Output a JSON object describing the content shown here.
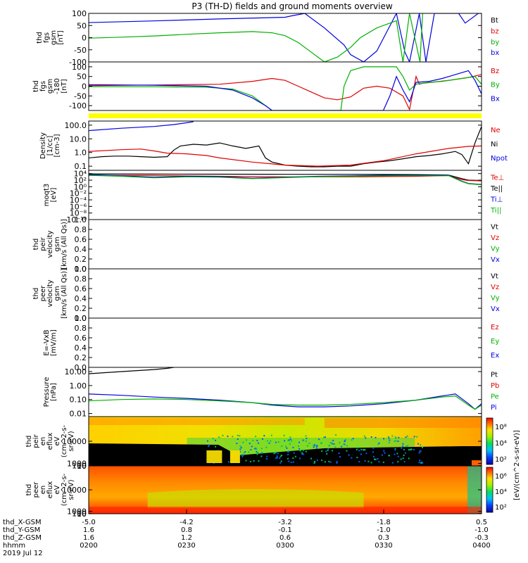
{
  "title": "P3 (TH-D) fields and ground moments overview",
  "chart_data": [
    {
      "id": "fgs",
      "type": "line",
      "ylabel": [
        "thd",
        "fgs",
        "gsm",
        "[nT]"
      ],
      "ylim": [
        -100,
        100
      ],
      "yticks": [
        100,
        50,
        0,
        -50,
        -100
      ],
      "legend": [
        {
          "text": "Bt",
          "color": "#000000"
        },
        {
          "text": "bz",
          "color": "#e00000"
        },
        {
          "text": "by",
          "color": "#00b000"
        },
        {
          "text": "bx",
          "color": "#0000e0"
        }
      ],
      "series": [
        {
          "color": "#0000e0",
          "x": [
            0,
            10,
            20,
            30,
            31,
            33,
            36,
            39,
            40,
            42,
            44,
            47,
            48.3,
            49,
            50.5,
            51.5,
            52.8,
            54,
            56.5,
            57.5,
            59.5,
            60
          ],
          "y": [
            62,
            69,
            77,
            84,
            90,
            100,
            40,
            -30,
            -70,
            -100,
            -55,
            100,
            -60,
            -100,
            100,
            -100,
            100,
            100,
            100,
            60,
            100,
            100
          ]
        },
        {
          "color": "#00b000",
          "x": [
            0,
            5,
            10,
            15,
            20,
            25,
            28,
            30,
            32,
            34,
            35,
            36,
            38,
            40,
            41.5,
            44,
            47,
            48,
            49,
            50.6,
            51
          ],
          "y": [
            -2,
            2,
            7,
            14,
            20,
            25,
            20,
            8,
            -20,
            -60,
            -80,
            -100,
            -80,
            -40,
            0,
            40,
            70,
            -100,
            100,
            -100,
            100
          ]
        }
      ]
    },
    {
      "id": "fgs_mgse",
      "type": "line",
      "ylabel": [
        "thd",
        "fgs",
        "gsm",
        "-180",
        "[nT]"
      ],
      "ylim": [
        -125,
        125
      ],
      "yticks": [
        100,
        50,
        0,
        -50,
        -100
      ],
      "legend": [
        {
          "text": "Bz",
          "color": "#e00000"
        },
        {
          "text": "By",
          "color": "#00b000"
        },
        {
          "text": "Bx",
          "color": "#0000e0"
        }
      ],
      "series": [
        {
          "color": "#e00000",
          "x": [
            0,
            10,
            20,
            25,
            28,
            30,
            32,
            34,
            36,
            38,
            40,
            42,
            44,
            46,
            48,
            49,
            50,
            50.5,
            51,
            55,
            58,
            60
          ],
          "y": [
            3,
            6,
            10,
            25,
            40,
            30,
            0,
            -30,
            -60,
            -70,
            -55,
            -10,
            0,
            -10,
            -50,
            -120,
            50,
            10,
            15,
            30,
            45,
            60
          ]
        },
        {
          "color": "#00b000",
          "x": [
            0,
            10,
            18,
            22,
            25,
            27,
            28,
            29,
            31,
            34,
            36,
            37,
            38.5,
            39,
            40,
            42,
            45,
            47,
            48,
            49,
            50,
            52,
            54,
            57,
            59,
            60
          ],
          "y": [
            -2,
            -3,
            -5,
            -15,
            -50,
            -100,
            -125,
            -125,
            -125,
            -125,
            -125,
            -125,
            -125,
            0,
            80,
            100,
            100,
            100,
            50,
            -20,
            10,
            20,
            25,
            40,
            50,
            10
          ]
        },
        {
          "color": "#0000e0",
          "x": [
            0,
            10,
            18,
            22,
            25,
            27,
            28,
            29,
            30,
            31,
            40,
            45,
            46,
            47,
            48,
            49,
            50,
            52,
            54,
            56,
            58,
            59,
            60
          ],
          "y": [
            8,
            5,
            0,
            -20,
            -60,
            -100,
            -125,
            -125,
            -125,
            -125,
            -125,
            -125,
            -50,
            50,
            -20,
            -80,
            20,
            25,
            40,
            60,
            80,
            30,
            -40
          ]
        }
      ]
    },
    {
      "id": "density",
      "type": "line",
      "log": true,
      "ylabel": [
        "Density",
        "[1/cc]",
        "[cm-3]"
      ],
      "ylim": [
        0.05,
        200
      ],
      "yticks": [
        100.0,
        10.0,
        1.0,
        0.1
      ],
      "ytick_labels": [
        "100.0",
        "10.0",
        "1.0",
        "0.1"
      ],
      "legend": [
        {
          "text": "Ne",
          "color": "#e00000"
        },
        {
          "text": "Ni",
          "color": "#000000"
        },
        {
          "text": "Npot",
          "color": "#0000e0"
        }
      ],
      "series": [
        {
          "color": "#0000e0",
          "x": [
            0,
            5,
            10,
            13,
            15,
            16
          ],
          "y": [
            40,
            60,
            80,
            110,
            150,
            180
          ]
        },
        {
          "color": "#000000",
          "x": [
            0,
            2,
            4,
            6,
            8,
            10,
            12,
            13,
            14,
            16,
            18,
            20,
            22,
            24,
            26,
            27,
            28,
            30,
            32,
            34,
            36,
            38,
            40,
            42,
            44,
            46,
            48,
            50,
            52,
            54,
            56,
            57,
            58,
            59,
            60
          ],
          "y": [
            0.4,
            0.5,
            0.55,
            0.55,
            0.5,
            0.45,
            0.5,
            1.5,
            3,
            4,
            3.5,
            5,
            3,
            2,
            3,
            0.4,
            0.2,
            0.12,
            0.1,
            0.09,
            0.09,
            0.1,
            0.1,
            0.15,
            0.2,
            0.25,
            0.35,
            0.5,
            0.6,
            0.8,
            1.2,
            0.7,
            0.15,
            5,
            80
          ]
        },
        {
          "color": "#e00000",
          "x": [
            0,
            5,
            8,
            10,
            12,
            15,
            18,
            20,
            25,
            30,
            35,
            40,
            45,
            50,
            55,
            58,
            60
          ],
          "y": [
            1.2,
            1.6,
            1.8,
            1.3,
            0.9,
            0.8,
            0.6,
            0.4,
            0.2,
            0.12,
            0.1,
            0.12,
            0.25,
            0.8,
            2.0,
            2.8,
            3.0
          ]
        }
      ]
    },
    {
      "id": "temp",
      "type": "line",
      "log": true,
      "ylabel": [
        "moqt3",
        "[eV]"
      ],
      "ylim": [
        1e-10,
        100000.0
      ],
      "yticks": [
        10000,
        100,
        1,
        0.01,
        0.0001,
        1e-06,
        1e-08,
        1e-10
      ],
      "ytick_labels": [
        "10⁴",
        "10²",
        "10⁰",
        "10⁻²",
        "10⁻⁴",
        "10⁻⁶",
        "10⁻⁸",
        "10⁻¹⁰"
      ],
      "legend": [
        {
          "text": "Te⊥",
          "color": "#e00000"
        },
        {
          "text": "Te||",
          "color": "#000000"
        },
        {
          "text": "Ti⊥",
          "color": "#0000e0"
        },
        {
          "text": "Ti||",
          "color": "#00b000"
        }
      ],
      "series": [
        {
          "color": "#000000",
          "x": [
            0,
            10,
            20,
            30,
            40,
            50,
            55,
            57,
            58,
            60
          ],
          "y": [
            8000,
            7000,
            6500,
            6000,
            6000,
            5000,
            3500,
            300,
            100,
            80
          ]
        },
        {
          "color": "#e00000",
          "x": [
            0,
            10,
            20,
            30,
            40,
            50,
            55,
            57,
            58,
            60
          ],
          "y": [
            3000,
            2500,
            1500,
            1000,
            1000,
            1500,
            2500,
            150,
            80,
            60
          ]
        },
        {
          "color": "#0000e0",
          "x": [
            0,
            5,
            10,
            15,
            20,
            25,
            30,
            35,
            40,
            45,
            50,
            55,
            57,
            58,
            60
          ],
          "y": [
            5000,
            2000,
            800,
            1500,
            1200,
            400,
            800,
            1500,
            2000,
            3000,
            3500,
            3000,
            50,
            10,
            5
          ]
        },
        {
          "color": "#00b000",
          "x": [
            0,
            5,
            10,
            15,
            20,
            25,
            30,
            35,
            40,
            45,
            50,
            55,
            57,
            58,
            60
          ],
          "y": [
            3000,
            1500,
            500,
            1000,
            800,
            300,
            600,
            1200,
            1500,
            2000,
            2500,
            2200,
            40,
            8,
            4
          ]
        }
      ]
    },
    {
      "id": "peir_vel",
      "type": "line",
      "ylabel": [
        "thd",
        "peir",
        "velocity",
        "gsm",
        "[km/s (All Qs)]"
      ],
      "ylim": [
        0,
        1
      ],
      "yticks": [
        1.0,
        0.8,
        0.6,
        0.4,
        0.2,
        0.0
      ],
      "ytick_labels": [
        "1.0",
        "0.8",
        "0.6",
        "0.4",
        "0.2",
        "0.0"
      ],
      "legend": [
        {
          "text": "Vt",
          "color": "#000000"
        },
        {
          "text": "Vz",
          "color": "#e00000"
        },
        {
          "text": "Vy",
          "color": "#00b000"
        },
        {
          "text": "Vx",
          "color": "#0000e0"
        }
      ],
      "series": []
    },
    {
      "id": "peer_vel",
      "type": "line",
      "ylabel": [
        "thd",
        "peer",
        "velocity",
        "gsm",
        "[km/s (All Qs)]"
      ],
      "ylim": [
        0,
        1
      ],
      "yticks": [
        1.0,
        0.8,
        0.6,
        0.4,
        0.2,
        0.0
      ],
      "ytick_labels": [
        "1.0",
        "0.8",
        "0.6",
        "0.4",
        "0.2",
        "0.0"
      ],
      "legend": [
        {
          "text": "Vt",
          "color": "#000000"
        },
        {
          "text": "Vz",
          "color": "#e00000"
        },
        {
          "text": "Vy",
          "color": "#00b000"
        },
        {
          "text": "Vx",
          "color": "#0000e0"
        }
      ],
      "series": []
    },
    {
      "id": "efield",
      "type": "line",
      "ylabel": [
        "E=-VxB",
        "[mV/m]"
      ],
      "ylim": [
        0,
        1
      ],
      "yticks": [
        1.0,
        0.8,
        0.6,
        0.4,
        0.2,
        0.0
      ],
      "ytick_labels": [
        "1.0",
        "0.8",
        "0.6",
        "0.4",
        "0.2",
        "0.0"
      ],
      "legend": [
        {
          "text": "Ez",
          "color": "#e00000"
        },
        {
          "text": "Ey",
          "color": "#00b000"
        },
        {
          "text": "Ex",
          "color": "#0000e0"
        }
      ],
      "series": []
    },
    {
      "id": "pressure",
      "type": "line",
      "log": true,
      "ylabel": [
        "Pressure",
        "[nPa]"
      ],
      "ylim": [
        0.006,
        20
      ],
      "yticks": [
        10.0,
        1.0,
        0.1,
        0.01
      ],
      "ytick_labels": [
        "10.00",
        "1.00",
        "0.10",
        "0.01"
      ],
      "legend": [
        {
          "text": "Pt",
          "color": "#000000"
        },
        {
          "text": "Pb",
          "color": "#e00000"
        },
        {
          "text": "Pe",
          "color": "#00b000"
        },
        {
          "text": "Pi",
          "color": "#0000e0"
        }
      ],
      "series": [
        {
          "color": "#000000",
          "x": [
            0,
            5,
            10,
            12,
            13
          ],
          "y": [
            7,
            10,
            14,
            17,
            20
          ]
        },
        {
          "color": "#0000e0",
          "x": [
            0,
            5,
            10,
            15,
            20,
            25,
            28,
            32,
            36,
            40,
            45,
            50,
            54,
            56,
            58,
            59,
            60
          ],
          "y": [
            0.25,
            0.2,
            0.15,
            0.12,
            0.09,
            0.06,
            0.04,
            0.03,
            0.03,
            0.035,
            0.05,
            0.09,
            0.18,
            0.25,
            0.05,
            0.02,
            0.05
          ]
        },
        {
          "color": "#00b000",
          "x": [
            0,
            5,
            10,
            15,
            20,
            25,
            28,
            32,
            36,
            40,
            45,
            50,
            54,
            56,
            58,
            59,
            60
          ],
          "y": [
            0.08,
            0.1,
            0.11,
            0.1,
            0.08,
            0.06,
            0.045,
            0.04,
            0.04,
            0.045,
            0.06,
            0.09,
            0.15,
            0.18,
            0.04,
            0.02,
            0.04
          ]
        }
      ]
    },
    {
      "id": "peir_spec",
      "type": "heatmap",
      "ylabel": [
        "thd",
        "peir",
        "en",
        "eflux",
        "eV",
        "(cm^2-s-",
        "sr-eV)"
      ],
      "ylim": [
        7,
        20000
      ],
      "yticks": [
        10000,
        1000,
        100,
        10
      ],
      "ytick_labels": [
        "10000",
        "1000",
        "100",
        "10"
      ],
      "colorbar_label": "[eV/(cm^2-s-sr-eV)]",
      "colorbar_ticks": [
        "10⁸",
        "10⁴",
        "10²"
      ]
    },
    {
      "id": "peer_spec",
      "type": "heatmap",
      "ylabel": [
        "thd",
        "peer",
        "en",
        "eflux",
        "eV",
        "(cm^2-s-",
        "sr-eV)"
      ],
      "ylim": [
        7,
        20000
      ],
      "yticks": [
        10000,
        1000,
        100,
        10
      ],
      "ytick_labels": [
        "10000",
        "1000",
        "100",
        "10"
      ],
      "colorbar_label": "[eV/(cm^2-s-sr-eV)]",
      "colorbar_ticks": [
        "10⁶",
        "10⁴",
        "10²"
      ]
    }
  ],
  "xaxis": {
    "rows": [
      {
        "label": "thd_X-GSM",
        "values": [
          "-5.0",
          "-4.2",
          "-3.2",
          "-1.8",
          "0.5"
        ]
      },
      {
        "label": "thd_Y-GSM",
        "values": [
          "1.6",
          "0.8",
          "-0.1",
          "-1.0",
          "-1.0"
        ]
      },
      {
        "label": "thd_Z-GSM",
        "values": [
          "1.6",
          "1.2",
          "0.6",
          "0.3",
          "-0.3"
        ]
      },
      {
        "label": "hhmm",
        "values": [
          "0200",
          "0230",
          "0300",
          "0330",
          "0400"
        ]
      }
    ],
    "date": "2019 Jul 12"
  }
}
